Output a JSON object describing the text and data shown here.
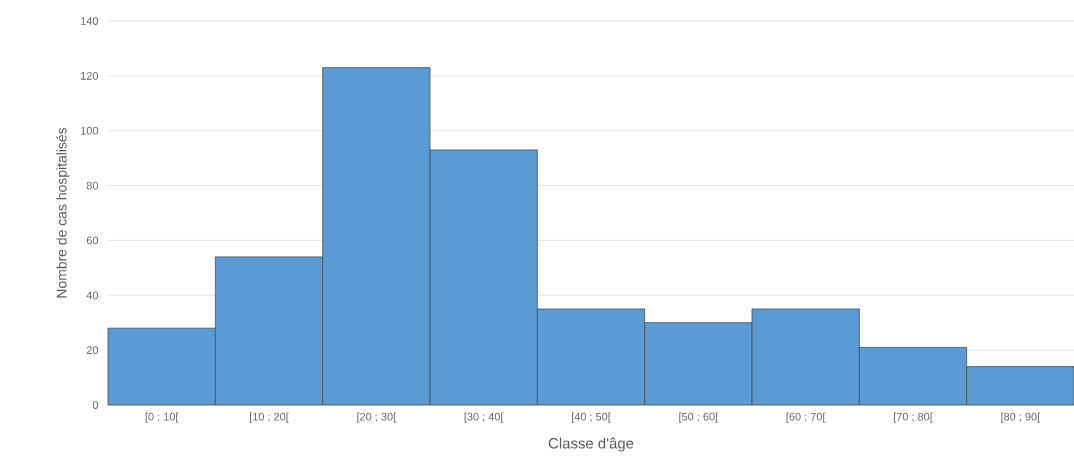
{
  "chart_data": {
    "type": "bar",
    "xlabel": "Classe d'âge",
    "ylabel": "Nombre de cas hospitalisés",
    "categories": [
      "[0 ; 10[",
      "[10 ; 20[",
      "[20 ; 30[",
      "[30 ; 40[",
      "[40 ; 50[",
      "[50 ; 60[",
      "[60 ; 70[",
      "[70 ; 80[",
      "[80 ; 90["
    ],
    "values": [
      28,
      54,
      123,
      93,
      35,
      30,
      35,
      21,
      14
    ],
    "color": "#5b9bd5",
    "ylim": [
      0,
      140
    ],
    "yticks": [
      0,
      20,
      40,
      60,
      80,
      100,
      120,
      140
    ],
    "grid": "y"
  }
}
